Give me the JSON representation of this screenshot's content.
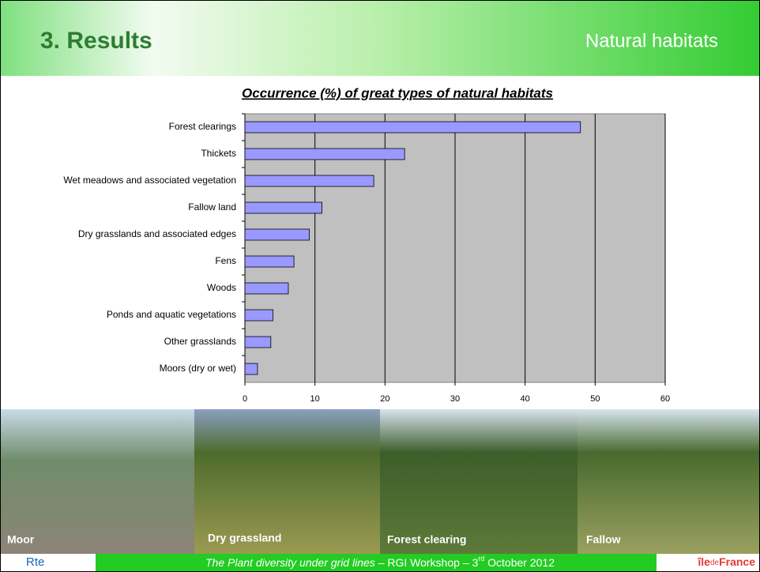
{
  "header": {
    "title": "3. Results",
    "section": "Natural habitats"
  },
  "chart_data": {
    "type": "hbar",
    "title": "Occurrence (%) of great types of natural habitats",
    "categories": [
      "Forest clearings",
      "Thickets",
      "Wet meadows and associated vegetation",
      "Fallow land",
      "Dry grasslands and associated edges",
      "Fens",
      "Woods",
      "Ponds and aquatic vegetations",
      "Other grasslands",
      "Moors (dry or wet)"
    ],
    "values": [
      47.9,
      22.8,
      18.4,
      11.0,
      9.2,
      7.0,
      6.2,
      4.0,
      3.7,
      1.8
    ],
    "color": "#9999ff",
    "xlim": [
      0,
      60
    ],
    "xticks": [
      0,
      10,
      20,
      30,
      40,
      50,
      60
    ],
    "grid": true
  },
  "photos": [
    "Moor",
    "Dry grassland",
    "Forest clearing",
    "Fallow"
  ],
  "footer": {
    "italic": "The Plant diversity under grid lines",
    "text": " – RGI Workshop – 3",
    "sup": "rd",
    "end": " October 2012",
    "logo_left": "Rte",
    "logo_right_a": "île",
    "logo_right_b": "de",
    "logo_right_c": "France"
  }
}
